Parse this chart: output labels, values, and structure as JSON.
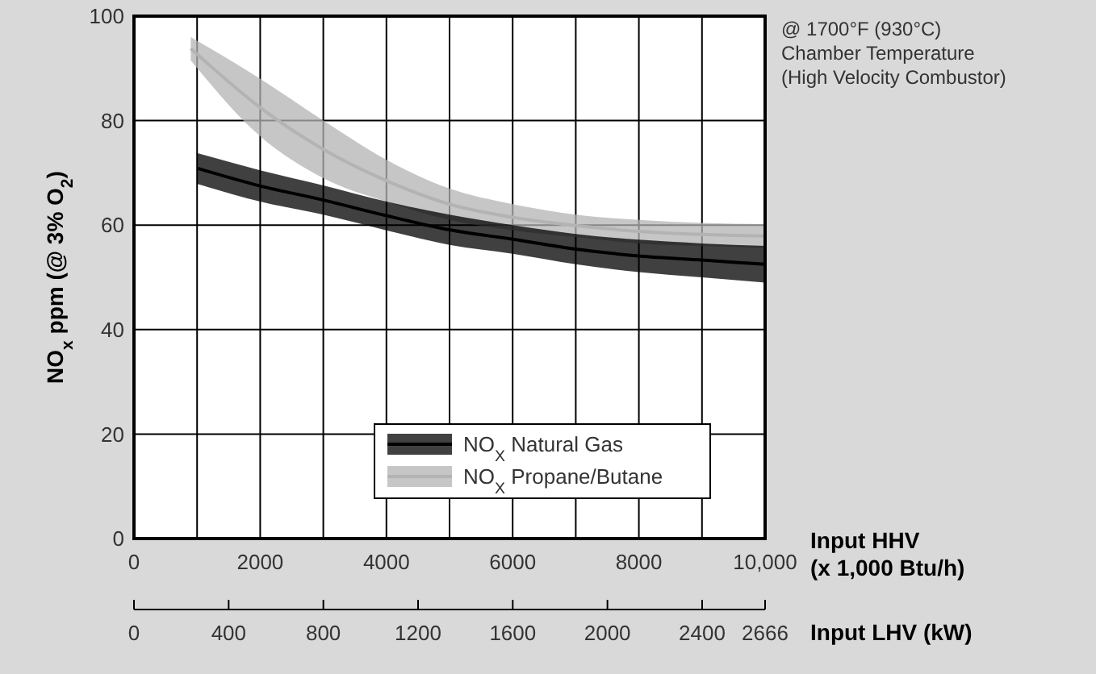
{
  "chart_data": {
    "type": "line",
    "ylabel": "NO$_{x}$ ppm (@ 3% O$_{2}$)",
    "xlabel": "Input HHV\n(x 1,000 Btu/h)",
    "x2label": "Input LHV (kW)",
    "annotations": [
      "@ 1700°F (930°C)\nChamber Temperature\n(High Velocity Combustor)"
    ],
    "xlim": [
      0,
      10000
    ],
    "xticks": [
      0,
      {
        "value": 1000,
        "label": null
      },
      2000,
      {
        "value": 3000,
        "label": null
      },
      4000,
      {
        "value": 5000,
        "label": null
      },
      6000,
      {
        "value": 7000,
        "label": null
      },
      8000,
      {
        "value": 9000,
        "label": null
      },
      {
        "value": 10000,
        "label": "10,000"
      }
    ],
    "x2lim": [
      0,
      2666
    ],
    "x2ticks": [
      0,
      400,
      800,
      1200,
      1600,
      2000,
      2400,
      2666
    ],
    "ylim": [
      0,
      100
    ],
    "yticks": [
      0,
      20,
      40,
      60,
      80,
      100
    ],
    "grid": true,
    "legend": "bottom right",
    "marker": "none",
    "series": [
      {
        "name": "NO$_{X}$ Propane/Butane",
        "color": "#b3b3b3",
        "x": [
          900,
          2000,
          3000,
          4000,
          5000,
          6000,
          7000,
          8000,
          9000,
          10000
        ],
        "values": [
          93.8,
          82.5,
          74.5,
          68.5,
          64,
          61.5,
          59.9,
          58.8,
          58.2,
          57.9
        ],
        "lower": [
          91.5,
          77,
          69,
          64.5,
          61,
          59,
          57.7,
          56.5,
          56,
          55.6
        ],
        "upper": [
          96,
          88,
          80,
          72.5,
          67,
          64,
          62,
          61,
          60.4,
          60.2
        ]
      },
      {
        "name": "NO$_{X}$ Natural Gas",
        "color": "#000000",
        "x": [
          1000,
          2000,
          3000,
          4000,
          5000,
          6000,
          7000,
          8000,
          9000,
          10000
        ],
        "values": [
          70.9,
          67.5,
          64.8,
          61.8,
          59.1,
          57.3,
          55.4,
          54.1,
          53.3,
          52.5
        ],
        "lower": [
          67.9,
          64.5,
          62,
          59,
          56.2,
          54.5,
          52.5,
          51,
          50,
          49
        ],
        "upper": [
          73.8,
          70.5,
          67.6,
          64.5,
          62,
          60,
          58.3,
          57.2,
          56.5,
          56
        ]
      }
    ]
  }
}
